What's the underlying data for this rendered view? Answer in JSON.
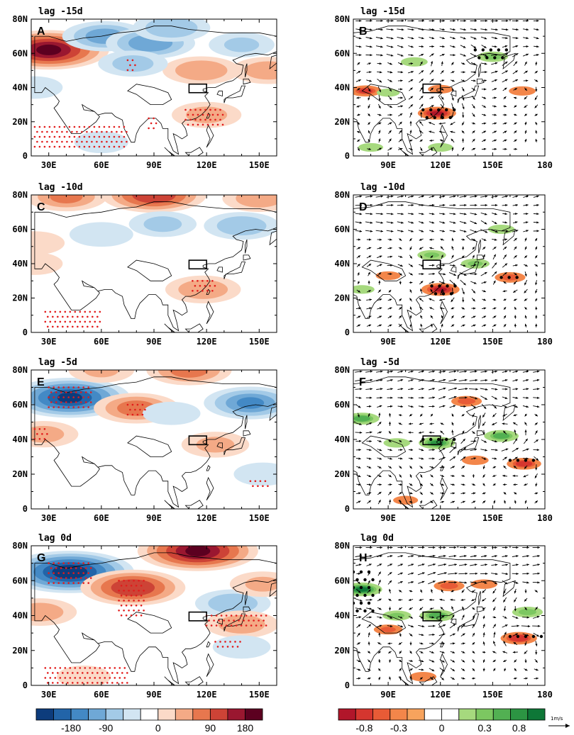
{
  "chart_data": [
    {
      "type": "heatmap",
      "panel_label": "A",
      "title": "lag -15d",
      "xlim": [
        20,
        160
      ],
      "ylim": [
        0,
        80
      ],
      "xticks": [
        "30E",
        "60E",
        "90E",
        "120E",
        "150E"
      ],
      "yticks": [
        "0",
        "20N",
        "40N",
        "60N",
        "80N"
      ],
      "box": {
        "lon": [
          110,
          120
        ],
        "lat": [
          37,
          42
        ]
      },
      "features": [
        {
          "lon": 30,
          "lat": 62,
          "value": 200
        },
        {
          "lon": 62,
          "lat": 70,
          "value": -110
        },
        {
          "lon": 88,
          "lat": 66,
          "value": -120
        },
        {
          "lon": 100,
          "lat": 75,
          "value": -90
        },
        {
          "lon": 117,
          "lat": 50,
          "value": 90
        },
        {
          "lon": 120,
          "lat": 24,
          "value": 70
        },
        {
          "lon": 155,
          "lat": 50,
          "value": 80
        },
        {
          "lon": 140,
          "lat": 65,
          "value": -60
        },
        {
          "lon": 78,
          "lat": 54,
          "value": -70
        },
        {
          "lon": 22,
          "lat": 40,
          "value": -35
        },
        {
          "lon": 60,
          "lat": 8,
          "value": -20
        }
      ],
      "stipple": [
        {
          "lon": [
            22,
            75
          ],
          "lat": [
            3,
            17
          ]
        },
        {
          "lon": [
            75,
            80
          ],
          "lat": [
            50,
            56
          ]
        },
        {
          "lon": [
            108,
            130
          ],
          "lat": [
            17,
            27
          ]
        },
        {
          "lon": [
            87,
            92
          ],
          "lat": [
            16,
            22
          ]
        }
      ]
    },
    {
      "type": "heatmap",
      "panel_label": "C",
      "title": "lag -10d",
      "xlim": [
        20,
        160
      ],
      "ylim": [
        0,
        80
      ],
      "xticks": [
        "30E",
        "60E",
        "90E",
        "120E",
        "150E"
      ],
      "yticks": [
        "0",
        "20N",
        "40N",
        "60N",
        "80N"
      ],
      "box": {
        "lon": [
          110,
          120
        ],
        "lat": [
          37,
          42
        ]
      },
      "features": [
        {
          "lon": 90,
          "lat": 80,
          "value": 160
        },
        {
          "lon": 40,
          "lat": 79,
          "value": 100
        },
        {
          "lon": 150,
          "lat": 78,
          "value": 80
        },
        {
          "lon": 95,
          "lat": 63,
          "value": -65
        },
        {
          "lon": 140,
          "lat": 62,
          "value": -85
        },
        {
          "lon": 60,
          "lat": 57,
          "value": -55
        },
        {
          "lon": 118,
          "lat": 25,
          "value": 85
        },
        {
          "lon": 22,
          "lat": 52,
          "value": 45
        },
        {
          "lon": 22,
          "lat": 40,
          "value": 35
        }
      ],
      "stipple": [
        {
          "lon": [
            28,
            60
          ],
          "lat": [
            2,
            12
          ]
        },
        {
          "lon": [
            112,
            126
          ],
          "lat": [
            22,
            30
          ]
        }
      ]
    },
    {
      "type": "heatmap",
      "panel_label": "E",
      "title": "lag -5d",
      "xlim": [
        20,
        160
      ],
      "ylim": [
        0,
        80
      ],
      "xticks": [
        "30E",
        "60E",
        "90E",
        "120E",
        "150E"
      ],
      "yticks": [
        "0",
        "20N",
        "40N",
        "60N",
        "80N"
      ],
      "box": {
        "lon": [
          110,
          120
        ],
        "lat": [
          37,
          42
        ]
      },
      "features": [
        {
          "lon": 42,
          "lat": 64,
          "value": -200
        },
        {
          "lon": 80,
          "lat": 58,
          "value": 110
        },
        {
          "lon": 145,
          "lat": 61,
          "value": -130
        },
        {
          "lon": 110,
          "lat": 80,
          "value": 110
        },
        {
          "lon": 27,
          "lat": 43,
          "value": 70
        },
        {
          "lon": 125,
          "lat": 37,
          "value": 65
        },
        {
          "lon": 100,
          "lat": 55,
          "value": -40
        },
        {
          "lon": 152,
          "lat": 20,
          "value": -40
        },
        {
          "lon": 60,
          "lat": 80,
          "value": 60
        }
      ],
      "stipple": [
        {
          "lon": [
            30,
            55
          ],
          "lat": [
            58,
            70
          ]
        },
        {
          "lon": [
            75,
            85
          ],
          "lat": [
            52,
            60
          ]
        },
        {
          "lon": [
            22,
            30
          ],
          "lat": [
            40,
            46
          ]
        },
        {
          "lon": [
            145,
            156
          ],
          "lat": [
            12,
            16
          ]
        }
      ]
    },
    {
      "type": "heatmap",
      "panel_label": "G",
      "title": "lag 0d",
      "xlim": [
        20,
        160
      ],
      "ylim": [
        0,
        80
      ],
      "xticks": [
        "30E",
        "60E",
        "90E",
        "120E",
        "150E"
      ],
      "yticks": [
        "0",
        "20N",
        "40N",
        "60N",
        "80N"
      ],
      "box": {
        "lon": [
          110,
          120
        ],
        "lat": [
          37,
          42
        ]
      },
      "features": [
        {
          "lon": 42,
          "lat": 65,
          "value": -220
        },
        {
          "lon": 115,
          "lat": 77,
          "value": 200
        },
        {
          "lon": 78,
          "lat": 56,
          "value": 160
        },
        {
          "lon": 135,
          "lat": 47,
          "value": -85
        },
        {
          "lon": 140,
          "lat": 35,
          "value": 80
        },
        {
          "lon": 25,
          "lat": 42,
          "value": 80
        },
        {
          "lon": 140,
          "lat": 22,
          "value": -40
        },
        {
          "lon": 50,
          "lat": 5,
          "value": 30
        },
        {
          "lon": 152,
          "lat": 58,
          "value": 60
        }
      ],
      "stipple": [
        {
          "lon": [
            30,
            55
          ],
          "lat": [
            58,
            70
          ]
        },
        {
          "lon": [
            70,
            85
          ],
          "lat": [
            40,
            60
          ]
        },
        {
          "lon": [
            120,
            155
          ],
          "lat": [
            32,
            40
          ]
        },
        {
          "lon": [
            28,
            75
          ],
          "lat": [
            1,
            10
          ]
        },
        {
          "lon": [
            125,
            140
          ],
          "lat": [
            20,
            25
          ]
        }
      ]
    },
    {
      "type": "vector-field",
      "panel_label": "B",
      "title": "lag -15d",
      "xlim": [
        70,
        180
      ],
      "ylim": [
        0,
        80
      ],
      "xticks": [
        "90E",
        "120E",
        "150E",
        "180"
      ],
      "yticks": [
        "0",
        "20N",
        "40N",
        "60N",
        "80N"
      ],
      "box": {
        "lon": [
          110,
          120
        ],
        "lat": [
          37,
          42
        ]
      },
      "features": [
        {
          "lon": 118,
          "lat": 25,
          "value": -1.2
        },
        {
          "lon": 77,
          "lat": 38,
          "value": -0.9
        },
        {
          "lon": 120,
          "lat": 39,
          "value": -0.5
        },
        {
          "lon": 167,
          "lat": 38,
          "value": -0.6
        },
        {
          "lon": 105,
          "lat": 55,
          "value": 0.6
        },
        {
          "lon": 150,
          "lat": 58,
          "value": 0.8
        },
        {
          "lon": 80,
          "lat": 5,
          "value": 0.5
        },
        {
          "lon": 120,
          "lat": 5,
          "value": 0.5
        },
        {
          "lon": 90,
          "lat": 37,
          "value": 0.4
        }
      ],
      "stipple": [
        {
          "lon": [
            110,
            128
          ],
          "lat": [
            22,
            27
          ]
        },
        {
          "lon": [
            140,
            160
          ],
          "lat": [
            55,
            62
          ]
        }
      ]
    },
    {
      "type": "vector-field",
      "panel_label": "D",
      "title": "lag -10d",
      "xlim": [
        70,
        180
      ],
      "ylim": [
        0,
        80
      ],
      "xticks": [
        "90E",
        "120E",
        "150E",
        "180"
      ],
      "yticks": [
        "0",
        "20N",
        "40N",
        "60N",
        "80N"
      ],
      "box": {
        "lon": [
          110,
          120
        ],
        "lat": [
          37,
          42
        ]
      },
      "features": [
        {
          "lon": 120,
          "lat": 25,
          "value": -1.2
        },
        {
          "lon": 160,
          "lat": 32,
          "value": -0.8
        },
        {
          "lon": 90,
          "lat": 33,
          "value": -0.5
        },
        {
          "lon": 115,
          "lat": 45,
          "value": 0.7
        },
        {
          "lon": 140,
          "lat": 40,
          "value": 0.7
        },
        {
          "lon": 155,
          "lat": 60,
          "value": 0.6
        },
        {
          "lon": 75,
          "lat": 25,
          "value": 0.5
        }
      ],
      "stipple": [
        {
          "lon": [
            115,
            130
          ],
          "lat": [
            22,
            27
          ]
        },
        {
          "lon": [
            155,
            165
          ],
          "lat": [
            29,
            32
          ]
        }
      ]
    },
    {
      "type": "vector-field",
      "panel_label": "F",
      "title": "lag -5d",
      "xlim": [
        70,
        180
      ],
      "ylim": [
        0,
        80
      ],
      "xticks": [
        "90E",
        "120E",
        "150E",
        "180"
      ],
      "yticks": [
        "0",
        "20N",
        "40N",
        "60N",
        "80N"
      ],
      "box": {
        "lon": [
          110,
          120
        ],
        "lat": [
          37,
          42
        ]
      },
      "features": [
        {
          "lon": 118,
          "lat": 38,
          "value": 1.1
        },
        {
          "lon": 155,
          "lat": 42,
          "value": 1.0
        },
        {
          "lon": 75,
          "lat": 52,
          "value": 1.0
        },
        {
          "lon": 95,
          "lat": 38,
          "value": 0.6
        },
        {
          "lon": 135,
          "lat": 62,
          "value": -0.8
        },
        {
          "lon": 168,
          "lat": 26,
          "value": -1.0
        },
        {
          "lon": 140,
          "lat": 28,
          "value": -0.6
        },
        {
          "lon": 100,
          "lat": 5,
          "value": -0.5
        }
      ],
      "stipple": [
        {
          "lon": [
            110,
            128
          ],
          "lat": [
            36,
            40
          ]
        },
        {
          "lon": [
            160,
            175
          ],
          "lat": [
            25,
            28
          ]
        }
      ]
    },
    {
      "type": "vector-field",
      "panel_label": "H",
      "title": "lag 0d",
      "xlim": [
        70,
        180
      ],
      "ylim": [
        0,
        80
      ],
      "xticks": [
        "90E",
        "120E",
        "150E",
        "180"
      ],
      "yticks": [
        "0",
        "20N",
        "40N",
        "60N",
        "80N"
      ],
      "box": {
        "lon": [
          110,
          120
        ],
        "lat": [
          37,
          42
        ]
      },
      "features": [
        {
          "lon": 75,
          "lat": 55,
          "value": 1.3
        },
        {
          "lon": 118,
          "lat": 40,
          "value": 1.0
        },
        {
          "lon": 170,
          "lat": 42,
          "value": 0.8
        },
        {
          "lon": 95,
          "lat": 40,
          "value": 0.7
        },
        {
          "lon": 125,
          "lat": 57,
          "value": -0.8
        },
        {
          "lon": 165,
          "lat": 27,
          "value": -1.1
        },
        {
          "lon": 90,
          "lat": 32,
          "value": -0.7
        },
        {
          "lon": 110,
          "lat": 5,
          "value": -0.6
        },
        {
          "lon": 145,
          "lat": 58,
          "value": -0.6
        }
      ],
      "stipple": [
        {
          "lon": [
            70,
            82
          ],
          "lat": [
            40,
            65
          ]
        },
        {
          "lon": [
            160,
            178
          ],
          "lat": [
            24,
            28
          ]
        }
      ]
    }
  ],
  "colorbars": [
    {
      "name": "height-anomaly",
      "colors": [
        "#0d3c7c",
        "#2264a8",
        "#4389c5",
        "#6fa8d6",
        "#a3cae7",
        "#d2e5f2",
        "#ffffff",
        "#fbdac8",
        "#f4aa86",
        "#e7774e",
        "#cd4336",
        "#9a1730",
        "#5c0020"
      ],
      "labels": [
        "-180",
        "-90",
        "0",
        "90",
        "180"
      ]
    },
    {
      "name": "precipitation-anomaly",
      "colors": [
        "#b1162a",
        "#d5362f",
        "#e85b36",
        "#f3864a",
        "#f7a35d",
        "#ffffff",
        "#ffffff",
        "#a6d97e",
        "#7cc761",
        "#52b052",
        "#2c9543",
        "#0e7737"
      ],
      "labels": [
        "-0.8",
        "-0.3",
        "0",
        "0.3",
        "0.8"
      ]
    }
  ],
  "vector_unit": "1m/s"
}
